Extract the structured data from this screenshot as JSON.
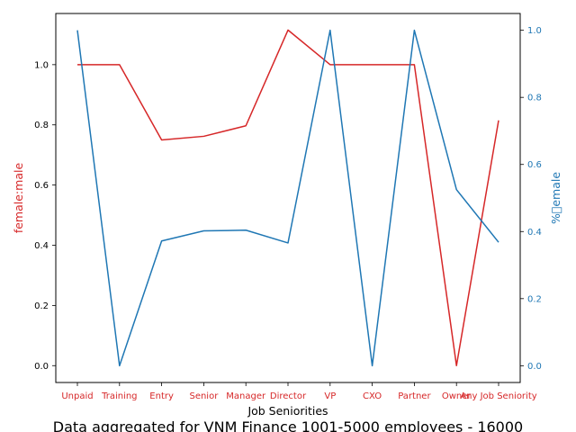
{
  "chart_data": {
    "type": "line",
    "title": "",
    "caption": "Data aggregated for VNM Finance 1001-5000 employees - 16000",
    "xlabel": "Job Seniorities",
    "categories": [
      "Unpaid",
      "Training",
      "Entry",
      "Senior",
      "Manager",
      "Director",
      "VP",
      "CXO",
      "Partner",
      "Owner",
      "Any Job Seniority"
    ],
    "series": [
      {
        "name": "",
        "axis": "left",
        "color": "#d62728",
        "values": [
          1.0,
          1.0,
          0.75,
          0.762,
          0.797,
          1.115,
          1.0,
          1.0,
          1.0,
          0.0,
          0.815
        ]
      },
      {
        "name": "",
        "axis": "right",
        "color": "#1f77b4",
        "values": [
          1.0,
          0.0,
          0.372,
          0.402,
          0.404,
          0.366,
          1.0,
          0.0,
          1.0,
          0.525,
          0.368
        ]
      }
    ],
    "ylabel_left": "female:male",
    "ylabel_right": "%\u0000emale",
    "ylim_left": [
      -0.056,
      1.17
    ],
    "ylim_right": [
      -0.05,
      1.05
    ],
    "yticks_left": [
      "0.0",
      "0.2",
      "0.4",
      "0.6",
      "0.8",
      "1.0"
    ],
    "yticks_right": [
      "0.0",
      "0.2",
      "0.4",
      "0.6",
      "0.8",
      "1.0"
    ],
    "left_color": "#d62728",
    "right_color": "#1f77b4",
    "grid": false
  }
}
